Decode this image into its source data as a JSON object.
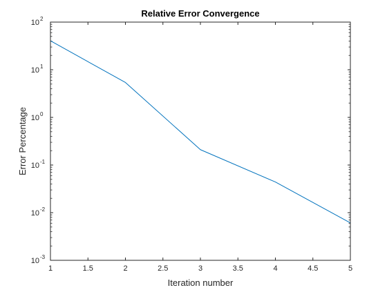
{
  "chart_data": {
    "type": "line",
    "title": "Relative Error Convergence",
    "xlabel": "Iteration number",
    "ylabel": "Error Percentage",
    "xlim": [
      1,
      5
    ],
    "ylim": [
      0.001,
      100
    ],
    "yscale": "log",
    "grid": false,
    "x_ticks": [
      {
        "value": 1,
        "label": "1"
      },
      {
        "value": 1.5,
        "label": "1.5"
      },
      {
        "value": 2,
        "label": "2"
      },
      {
        "value": 2.5,
        "label": "2.5"
      },
      {
        "value": 3,
        "label": "3"
      },
      {
        "value": 3.5,
        "label": "3.5"
      },
      {
        "value": 4,
        "label": "4"
      },
      {
        "value": 4.5,
        "label": "4.5"
      },
      {
        "value": 5,
        "label": "5"
      }
    ],
    "y_ticks": [
      {
        "value": 0.001,
        "base": "10",
        "exp": "-3"
      },
      {
        "value": 0.01,
        "base": "10",
        "exp": "-2"
      },
      {
        "value": 0.1,
        "base": "10",
        "exp": "-1"
      },
      {
        "value": 1,
        "base": "10",
        "exp": "0"
      },
      {
        "value": 10,
        "base": "10",
        "exp": "1"
      },
      {
        "value": 100,
        "base": "10",
        "exp": "2"
      }
    ],
    "series": [
      {
        "color": "#0072BD",
        "x": [
          1,
          2,
          3,
          4,
          5
        ],
        "y": [
          40.5,
          5.4,
          0.21,
          0.044,
          0.0061
        ]
      }
    ]
  }
}
